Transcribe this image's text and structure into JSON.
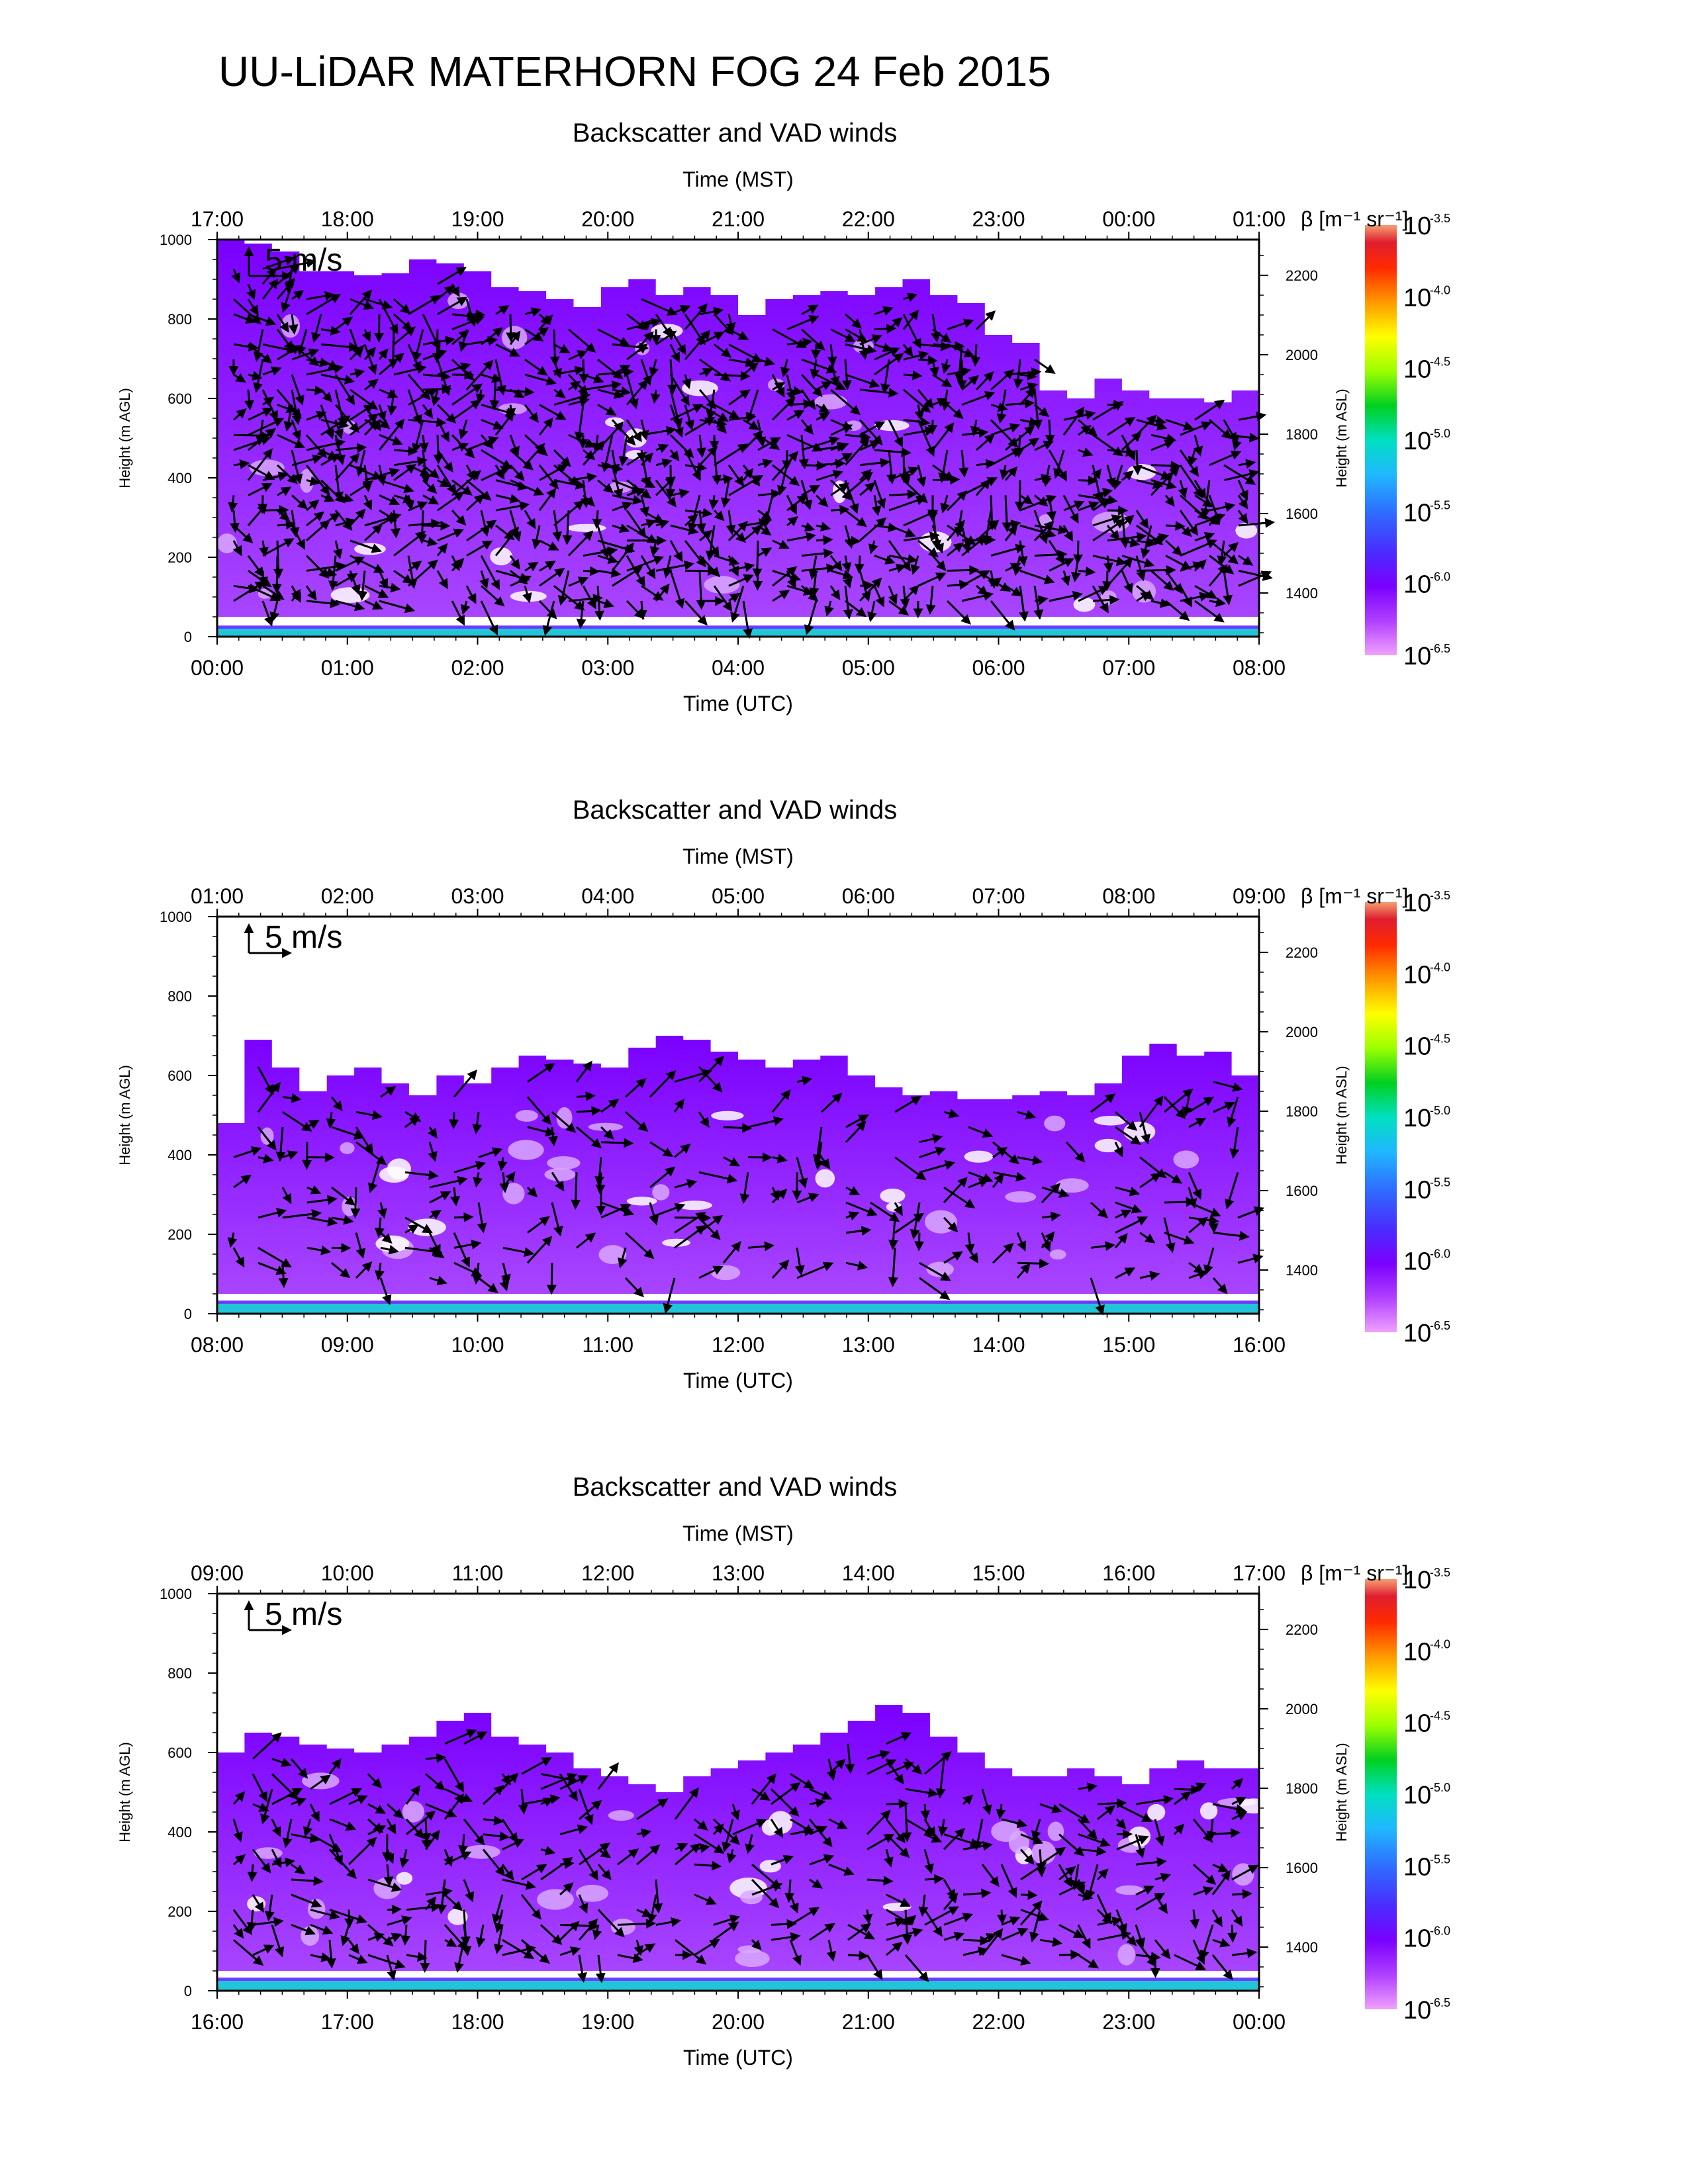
{
  "figure": {
    "title": "UU-LiDAR MATERHORN FOG  24 Feb 2015"
  },
  "chart_data": [
    {
      "type": "heatmap",
      "title": "Backscatter and VAD winds",
      "top_axis_label": "Time (MST)",
      "top_ticks": [
        "17:00",
        "18:00",
        "19:00",
        "20:00",
        "21:00",
        "22:00",
        "23:00",
        "00:00",
        "01:00"
      ],
      "xlabel": "Time (UTC)",
      "bottom_ticks": [
        "00:00",
        "01:00",
        "02:00",
        "03:00",
        "04:00",
        "05:00",
        "06:00",
        "07:00",
        "08:00"
      ],
      "ylabel": "Height (m AGL)",
      "ylim": [
        0,
        1000
      ],
      "yticks": [
        0,
        200,
        400,
        600,
        800,
        1000
      ],
      "y2label": "Height (m ASL)",
      "y2lim": [
        1290,
        2290
      ],
      "y2ticks": [
        1400,
        1600,
        1800,
        2000,
        2200
      ],
      "scale_arrow_label": "5 m/s",
      "colorbar_label": "β [m⁻¹ sr⁻¹]",
      "colorbar_ticks": [
        "-3.5",
        "-4.0",
        "-4.5",
        "-5.0",
        "-5.5",
        "-6.0",
        "-6.5"
      ],
      "colorbar_base": "10",
      "envelope_top_m": [
        1000,
        990,
        970,
        920,
        920,
        910,
        915,
        950,
        940,
        920,
        880,
        870,
        850,
        830,
        880,
        900,
        860,
        880,
        860,
        810,
        850,
        860,
        870,
        860,
        880,
        900,
        860,
        840,
        760,
        740,
        620,
        600,
        650,
        620,
        600,
        600,
        590,
        620
      ],
      "fog_layer_m": 20,
      "wind_density": 1.0
    },
    {
      "type": "heatmap",
      "title": "Backscatter and VAD winds",
      "top_axis_label": "Time (MST)",
      "top_ticks": [
        "01:00",
        "02:00",
        "03:00",
        "04:00",
        "05:00",
        "06:00",
        "07:00",
        "08:00",
        "09:00"
      ],
      "xlabel": "Time (UTC)",
      "bottom_ticks": [
        "08:00",
        "09:00",
        "10:00",
        "11:00",
        "12:00",
        "13:00",
        "14:00",
        "15:00",
        "16:00"
      ],
      "ylabel": "Height (m AGL)",
      "ylim": [
        0,
        1000
      ],
      "yticks": [
        0,
        200,
        400,
        600,
        800,
        1000
      ],
      "y2label": "Height (m ASL)",
      "y2lim": [
        1290,
        2290
      ],
      "y2ticks": [
        1400,
        1600,
        1800,
        2000,
        2200
      ],
      "scale_arrow_label": "5 m/s",
      "colorbar_label": "β [m⁻¹ sr⁻¹]",
      "colorbar_ticks": [
        "-3.5",
        "-4.0",
        "-4.5",
        "-5.0",
        "-5.5",
        "-6.0",
        "-6.5"
      ],
      "colorbar_base": "10",
      "envelope_top_m": [
        480,
        690,
        620,
        560,
        600,
        620,
        580,
        550,
        600,
        580,
        620,
        650,
        640,
        630,
        620,
        670,
        700,
        690,
        660,
        640,
        620,
        640,
        650,
        600,
        570,
        550,
        560,
        540,
        540,
        550,
        560,
        550,
        580,
        650,
        680,
        650,
        660,
        600
      ],
      "fog_layer_m": 25,
      "wind_density": 0.6
    },
    {
      "type": "heatmap",
      "title": "Backscatter and VAD winds",
      "top_axis_label": "Time (MST)",
      "top_ticks": [
        "09:00",
        "10:00",
        "11:00",
        "12:00",
        "13:00",
        "14:00",
        "15:00",
        "16:00",
        "17:00"
      ],
      "xlabel": "Time (UTC)",
      "bottom_ticks": [
        "16:00",
        "17:00",
        "18:00",
        "19:00",
        "20:00",
        "21:00",
        "22:00",
        "23:00",
        "00:00"
      ],
      "ylabel": "Height (m AGL)",
      "ylim": [
        0,
        1000
      ],
      "yticks": [
        0,
        200,
        400,
        600,
        800,
        1000
      ],
      "y2label": "Height (m ASL)",
      "y2lim": [
        1290,
        2290
      ],
      "y2ticks": [
        1400,
        1600,
        1800,
        2000,
        2200
      ],
      "scale_arrow_label": "5 m/s",
      "colorbar_label": "β [m⁻¹ sr⁻¹]",
      "colorbar_ticks": [
        "-3.5",
        "-4.0",
        "-4.5",
        "-5.0",
        "-5.5",
        "-6.0",
        "-6.5"
      ],
      "colorbar_base": "10",
      "envelope_top_m": [
        600,
        650,
        640,
        620,
        610,
        600,
        620,
        640,
        680,
        700,
        640,
        620,
        600,
        560,
        540,
        520,
        500,
        540,
        560,
        580,
        600,
        620,
        650,
        680,
        720,
        700,
        640,
        600,
        560,
        540,
        540,
        560,
        540,
        520,
        560,
        580,
        560,
        560
      ],
      "fog_layer_m": 25,
      "wind_density": 0.75
    }
  ]
}
